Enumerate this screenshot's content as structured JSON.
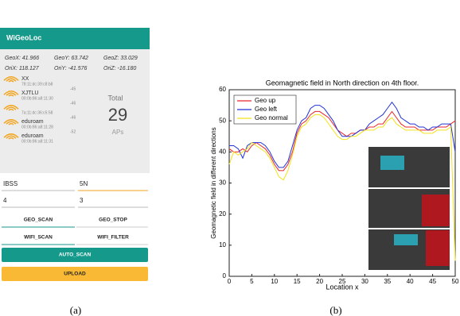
{
  "app": {
    "title": "WiGeoLoc",
    "readings": [
      "GeoX: 41.966",
      "GeoY: 63.742",
      "GeoZ: 33.029",
      "OriX: 118.127",
      "OriY: -41.576",
      "OriZ: -16.180"
    ],
    "wifi": [
      {
        "ssid": "XX",
        "mac": "78:11:dc:39:c8:b8"
      },
      {
        "ssid": "XJTLU",
        "mac": "00:0b:86:a8:11:30",
        "level": "-45"
      },
      {
        "mac": "7a:11:dc:36:c5:58",
        "level": "-46"
      },
      {
        "ssid": "eduroam",
        "mac": "00:0b:86:a8:11:28",
        "level": "-46"
      },
      {
        "ssid": "eduroam",
        "mac": "00:0b:86:a8:11:31",
        "level": "-52"
      }
    ],
    "total_label": "Total",
    "total": 29,
    "total_unit": "APs",
    "fields": [
      "IBSS",
      "5N",
      "4",
      "3"
    ],
    "buttons": [
      "GEO_SCAN",
      "GEO_STOP",
      "WIFI_SCAN",
      "WIFI_FILTER",
      "AUTO_SCAN",
      "UPLOAD"
    ]
  },
  "captions": [
    "(a)",
    "(b)"
  ],
  "chart_data": {
    "type": "line",
    "title": "Geomagnetic field in North direction on 4th floor.",
    "x_label": "Location x",
    "y_label": "Geomagnetic field in different directions",
    "x": [
      0,
      1,
      2,
      3,
      4,
      5,
      6,
      7,
      8,
      9,
      10,
      11,
      12,
      13,
      14,
      15,
      16,
      17,
      18,
      19,
      20,
      21,
      22,
      23,
      24,
      25,
      26,
      27,
      28,
      29,
      30,
      31,
      32,
      33,
      34,
      35,
      36,
      37,
      38,
      39,
      40,
      41,
      42,
      43,
      44,
      45,
      46,
      47,
      48,
      49,
      50
    ],
    "series": [
      {
        "name": "Geo up",
        "color": "#e8262a",
        "values": [
          41,
          40,
          40,
          41,
          40,
          42,
          43,
          42,
          41,
          39,
          36,
          34,
          34,
          36,
          40,
          46,
          49,
          50,
          52,
          53,
          53,
          52,
          51,
          49,
          47,
          46,
          45,
          46,
          46,
          47,
          47,
          48,
          48,
          49,
          49,
          51,
          53,
          51,
          49,
          48,
          48,
          48,
          47,
          47,
          47,
          47,
          48,
          48,
          48,
          49,
          50
        ]
      },
      {
        "name": "Geo left",
        "color": "#2233d8",
        "values": [
          42,
          42,
          41,
          38,
          42,
          43,
          43,
          43,
          42,
          40,
          37,
          35,
          35,
          37,
          42,
          47,
          50,
          51,
          54,
          55,
          55,
          54,
          52,
          50,
          47,
          45,
          45,
          45,
          46,
          47,
          47,
          49,
          50,
          51,
          52,
          54,
          56,
          54,
          51,
          50,
          49,
          49,
          48,
          48,
          47,
          48,
          48,
          49,
          49,
          49,
          40
        ]
      },
      {
        "name": "Geo normal",
        "color": "#f2e21a",
        "values": [
          36,
          40,
          39,
          40,
          41,
          43,
          42,
          41,
          40,
          38,
          35,
          32,
          31,
          34,
          39,
          45,
          48,
          49,
          51,
          52,
          52,
          51,
          49,
          47,
          45,
          44,
          44,
          45,
          45,
          46,
          47,
          47,
          47,
          48,
          48,
          50,
          51,
          49,
          48,
          47,
          47,
          47,
          47,
          46,
          46,
          46,
          47,
          47,
          47,
          48,
          5
        ]
      }
    ],
    "xlim": [
      0,
      50
    ],
    "ylim": [
      0,
      60
    ],
    "xticks": [
      0,
      5,
      10,
      15,
      20,
      25,
      30,
      35,
      40,
      45,
      50
    ],
    "yticks": [
      0,
      10,
      20,
      30,
      40,
      50,
      60
    ],
    "legend": "upper left"
  }
}
